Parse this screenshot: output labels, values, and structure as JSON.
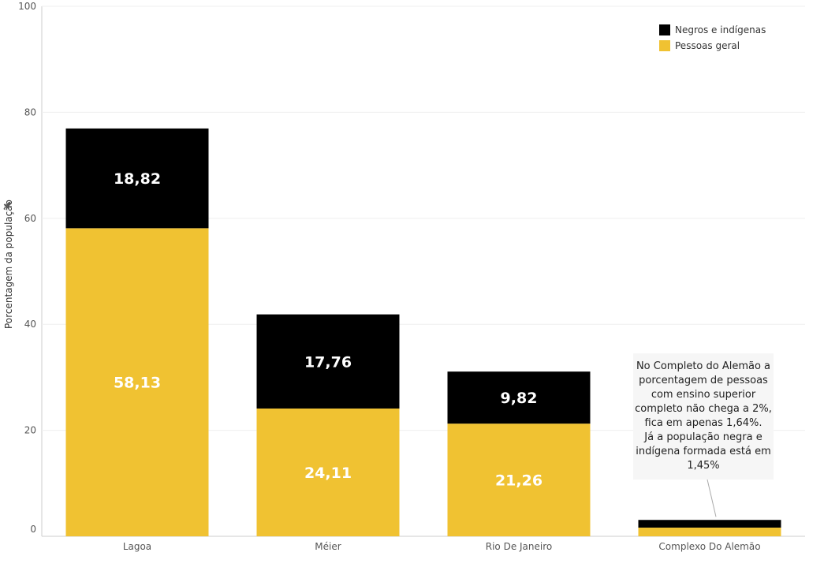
{
  "chart_data": {
    "type": "bar",
    "stacked": true,
    "categories": [
      "Lagoa",
      "Méier",
      "Rio De Janeiro",
      "Complexo Do Alemão"
    ],
    "series": [
      {
        "name": "Pessoas geral",
        "color": "#f0c232",
        "values": [
          58.13,
          24.11,
          21.26,
          1.64
        ],
        "labels": [
          "58,13",
          "24,11",
          "21,26",
          ""
        ]
      },
      {
        "name": "Negros e indígenas",
        "color": "#000000",
        "values": [
          18.82,
          17.76,
          9.82,
          1.45
        ],
        "labels": [
          "18,82",
          "17,76",
          "9,82",
          ""
        ]
      }
    ],
    "ylabel": "Porcentagem da população",
    "ylim": [
      0,
      100
    ],
    "yticks": [
      "100",
      "80",
      "60",
      "40",
      "20",
      "0"
    ],
    "grid": true,
    "legend": "top-right",
    "annotation": {
      "target": "Complexo Do Alemão",
      "lines": [
        "No Completo do Alemão a",
        "porcentagem de pessoas",
        "com ensino superior",
        "completo não chega a 2%,",
        "fica em apenas 1,64%.",
        "Já  a população negra e",
        "indígena formada está em",
        "1,45%"
      ]
    }
  }
}
